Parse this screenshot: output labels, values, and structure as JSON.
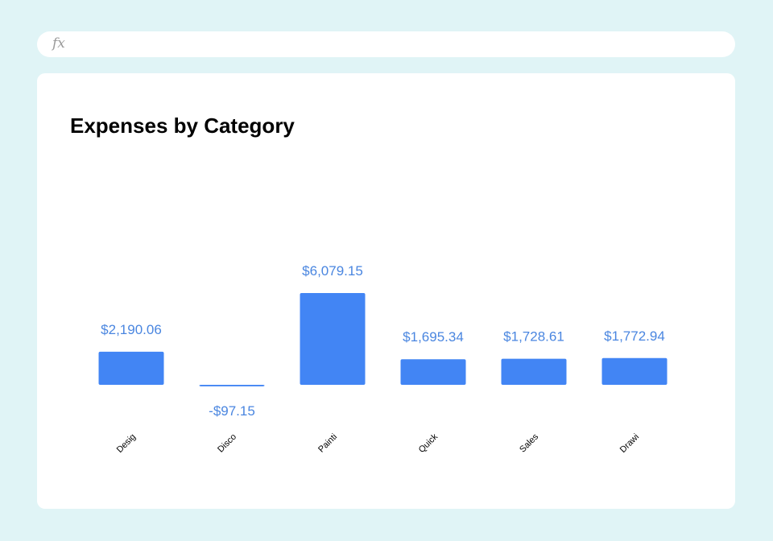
{
  "formula_bar": {
    "icon": "function-icon",
    "label": "fx"
  },
  "colors": {
    "bar": "#4285f4",
    "label": "#4a86e0",
    "background": "#e0f4f6",
    "card": "#ffffff"
  },
  "chart_data": {
    "type": "bar",
    "title": "Expenses by Category",
    "categories": [
      "Desig",
      "Disco",
      "Painti",
      "Quick",
      "Sales",
      "Drawi"
    ],
    "values": [
      2190.06,
      -97.15,
      6079.15,
      1695.34,
      1728.61,
      1772.94
    ],
    "data_labels": [
      "$2,190.06",
      "-$97.15",
      "$6,079.15",
      "$1,695.34",
      "$1,728.61",
      "$1,772.94"
    ],
    "xlabel": "",
    "ylabel": "",
    "grid": false,
    "legend": "none"
  }
}
